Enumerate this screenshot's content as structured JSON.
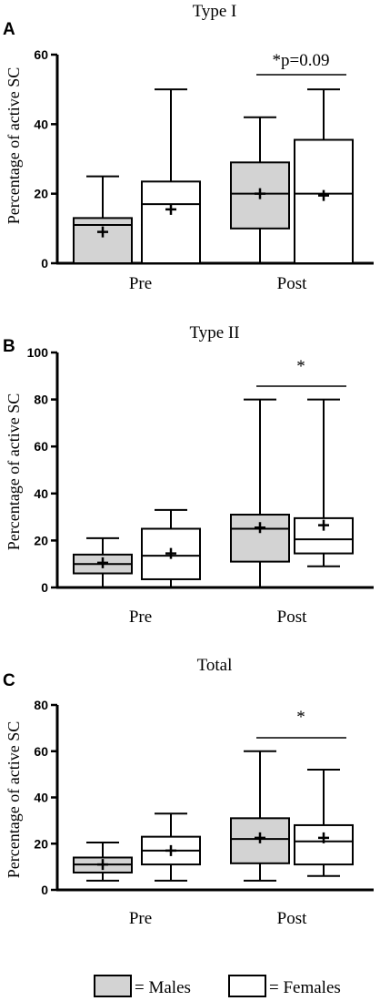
{
  "chart_data": [
    {
      "type": "boxplot",
      "panel": "A",
      "title": "Type I",
      "ylabel": "Percentage of active SC",
      "ylim": [
        0,
        60
      ],
      "yticks": [
        "0",
        "20",
        "40",
        "60"
      ],
      "categories": [
        "Pre",
        "Post"
      ],
      "series": [
        {
          "name": "Males",
          "color": "#d3d3d3",
          "boxes": [
            {
              "min": 0,
              "q1": 0,
              "median": 11,
              "q3": 13,
              "max": 25,
              "mean": 9
            },
            {
              "min": 0,
              "q1": 10,
              "median": 20,
              "q3": 29,
              "max": 42,
              "mean": 20
            }
          ]
        },
        {
          "name": "Females",
          "color": "#ffffff",
          "boxes": [
            {
              "min": 0,
              "q1": 0,
              "median": 17,
              "q3": 23.5,
              "max": 50,
              "mean": 15.5
            },
            {
              "min": 0,
              "q1": 0,
              "median": 20,
              "q3": 35.5,
              "max": 50,
              "mean": 19.5
            }
          ]
        }
      ],
      "annotation": {
        "text": "*p=0.09",
        "category": "Post"
      }
    },
    {
      "type": "boxplot",
      "panel": "B",
      "title": "Type II",
      "ylabel": "Percentage of active SC",
      "ylim": [
        0,
        100
      ],
      "yticks": [
        "0",
        "20",
        "40",
        "60",
        "80",
        "100"
      ],
      "categories": [
        "Pre",
        "Post"
      ],
      "series": [
        {
          "name": "Males",
          "color": "#d3d3d3",
          "boxes": [
            {
              "min": 0,
              "q1": 6,
              "median": 10,
              "q3": 14,
              "max": 21,
              "mean": 10.5
            },
            {
              "min": 0,
              "q1": 11,
              "median": 25,
              "q3": 31,
              "max": 80,
              "mean": 25.5
            }
          ]
        },
        {
          "name": "Females",
          "color": "#ffffff",
          "boxes": [
            {
              "min": 0,
              "q1": 3.5,
              "median": 13.5,
              "q3": 25,
              "max": 33,
              "mean": 14.5
            },
            {
              "min": 9,
              "q1": 14.5,
              "median": 20.5,
              "q3": 29.5,
              "max": 80,
              "mean": 26.5
            }
          ]
        }
      ],
      "annotation": {
        "text": "*",
        "category": "Post"
      }
    },
    {
      "type": "boxplot",
      "panel": "C",
      "title": "Total",
      "ylabel": "Percentage of active SC",
      "ylim": [
        0,
        80
      ],
      "yticks": [
        "0",
        "20",
        "40",
        "60",
        "80"
      ],
      "categories": [
        "Pre",
        "Post"
      ],
      "series": [
        {
          "name": "Males",
          "color": "#d3d3d3",
          "boxes": [
            {
              "min": 4,
              "q1": 7.5,
              "median": 11,
              "q3": 14,
              "max": 20.5,
              "mean": 11
            },
            {
              "min": 4,
              "q1": 11.5,
              "median": 22,
              "q3": 31,
              "max": 60,
              "mean": 22.5
            }
          ]
        },
        {
          "name": "Females",
          "color": "#ffffff",
          "boxes": [
            {
              "min": 4,
              "q1": 11,
              "median": 17,
              "q3": 23,
              "max": 33,
              "mean": 17
            },
            {
              "min": 6,
              "q1": 11,
              "median": 21,
              "q3": 28,
              "max": 52,
              "mean": 22.5
            }
          ]
        }
      ],
      "annotation": {
        "text": "*",
        "category": "Post"
      }
    }
  ],
  "legend": {
    "items": [
      {
        "label": "= Males",
        "color": "#d3d3d3"
      },
      {
        "label": "= Females",
        "color": "#ffffff"
      }
    ]
  }
}
